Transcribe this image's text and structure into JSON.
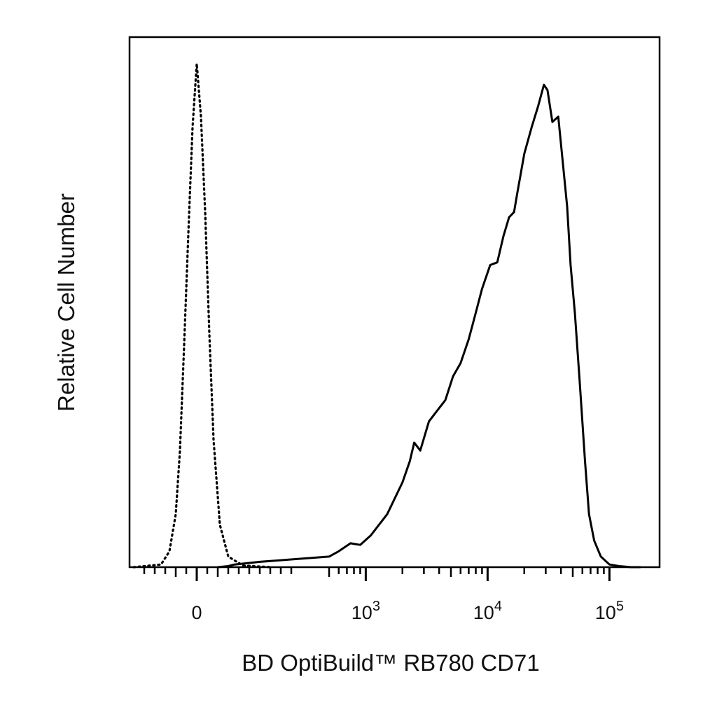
{
  "chart_data": {
    "type": "line",
    "title": "",
    "xlabel": "BD OptiBuild™ RB780 CD71",
    "ylabel": "Relative Cell Number",
    "x_scale": "biexponential",
    "xlim": [
      -300,
      180000
    ],
    "ylim": [
      0,
      100
    ],
    "grid": false,
    "legend": "none",
    "x_ticks": [
      {
        "value": 0,
        "label": "0",
        "exp": ""
      },
      {
        "value": 1000,
        "label": "10",
        "exp": "3"
      },
      {
        "value": 10000,
        "label": "10",
        "exp": "4"
      },
      {
        "value": 100000,
        "label": "10",
        "exp": "5"
      }
    ],
    "colors": {
      "line": "#000000",
      "frame": "#000000",
      "background": "#ffffff"
    },
    "series": [
      {
        "style": "dotted",
        "x": [
          -300,
          -170,
          -130,
          -100,
          -80,
          -60,
          -40,
          -20,
          0,
          20,
          40,
          60,
          80,
          110,
          150,
          220,
          350
        ],
        "y": [
          0,
          0.5,
          3,
          10,
          22,
          42,
          63,
          83,
          95,
          85,
          67,
          44,
          24,
          8,
          2,
          0.3,
          0
        ]
      },
      {
        "style": "solid",
        "x": [
          100,
          150,
          180,
          300,
          500,
          600,
          750,
          900,
          1100,
          1500,
          2000,
          2300,
          2500,
          2800,
          3300,
          4000,
          4500,
          5200,
          6000,
          7000,
          8000,
          9000,
          10500,
          12000,
          13500,
          15000,
          16500,
          17500,
          20000,
          23000,
          26000,
          29000,
          31000,
          34000,
          38000,
          42000,
          45000,
          48000,
          52000,
          57000,
          63000,
          68000,
          75000,
          85000,
          100000,
          120000,
          150000,
          180000
        ],
        "y": [
          0,
          0.2,
          0.5,
          1,
          2,
          3,
          4.5,
          4.2,
          6,
          10,
          16,
          20,
          23.5,
          22,
          27.5,
          30,
          31.5,
          36,
          38.5,
          43,
          48,
          52.5,
          57,
          57.5,
          62.5,
          66,
          67,
          70.5,
          78,
          83,
          87,
          91,
          90,
          84,
          85,
          75,
          68,
          57,
          48,
          35,
          20,
          10,
          5,
          2,
          0.5,
          0.2,
          0,
          0
        ]
      }
    ]
  }
}
